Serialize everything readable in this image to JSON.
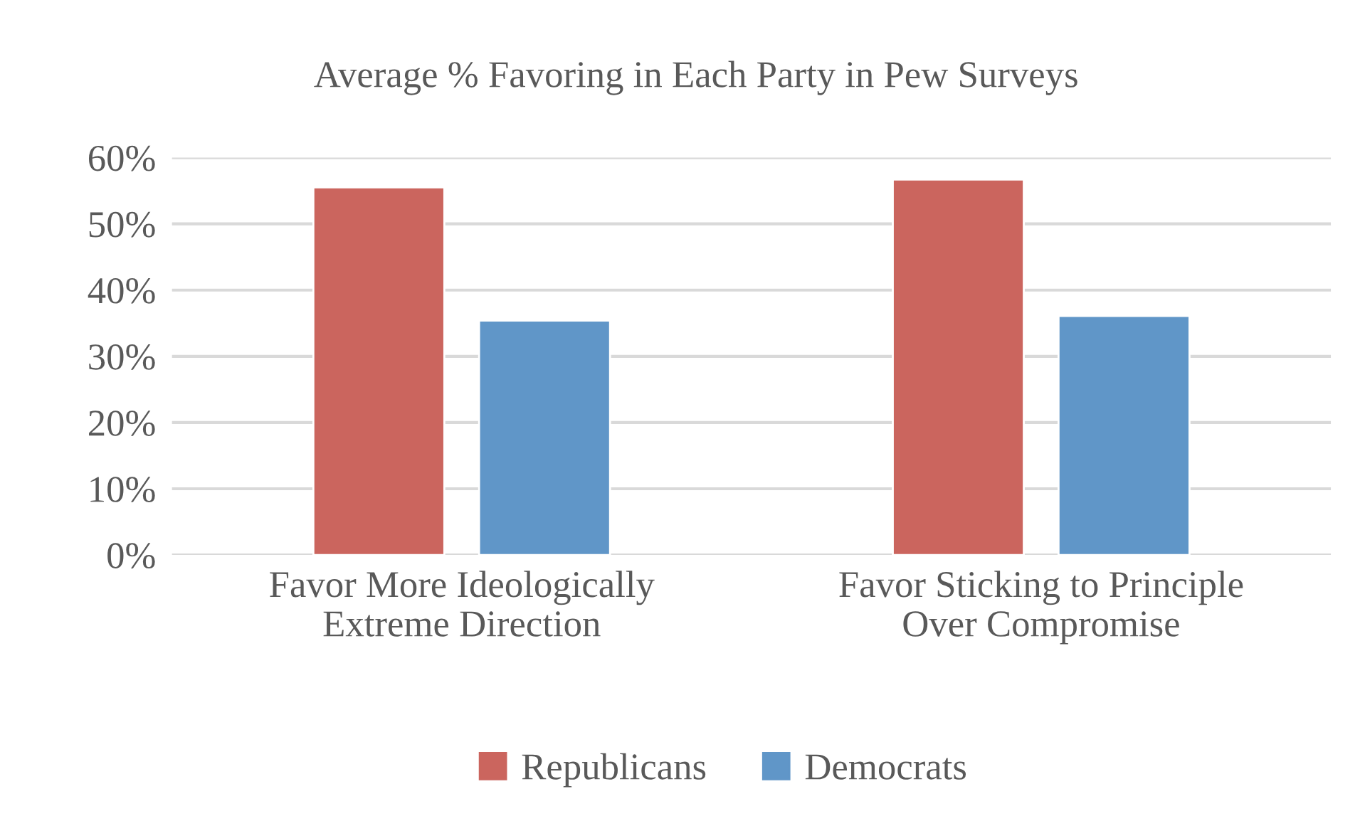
{
  "chart_data": {
    "type": "bar",
    "title": "Average % Favoring in Each Party in Pew Surveys",
    "categories": [
      "Favor More Ideologically\nExtreme Direction",
      "Favor Sticking to Principle\nOver Compromise"
    ],
    "series": [
      {
        "name": "Republicans",
        "color": "#cb655e",
        "values": [
          55.5,
          56.7
        ]
      },
      {
        "name": "Democrats",
        "color": "#6096c8",
        "values": [
          35.4,
          36.1
        ]
      }
    ],
    "ylim": [
      0,
      60
    ],
    "yticks": [
      {
        "value": 0,
        "label": "0%"
      },
      {
        "value": 10,
        "label": "10%"
      },
      {
        "value": 20,
        "label": "20%"
      },
      {
        "value": 30,
        "label": "30%"
      },
      {
        "value": 40,
        "label": "40%"
      },
      {
        "value": 50,
        "label": "50%"
      },
      {
        "value": 60,
        "label": "60%"
      }
    ],
    "grid": "y",
    "legend": "bottom"
  }
}
